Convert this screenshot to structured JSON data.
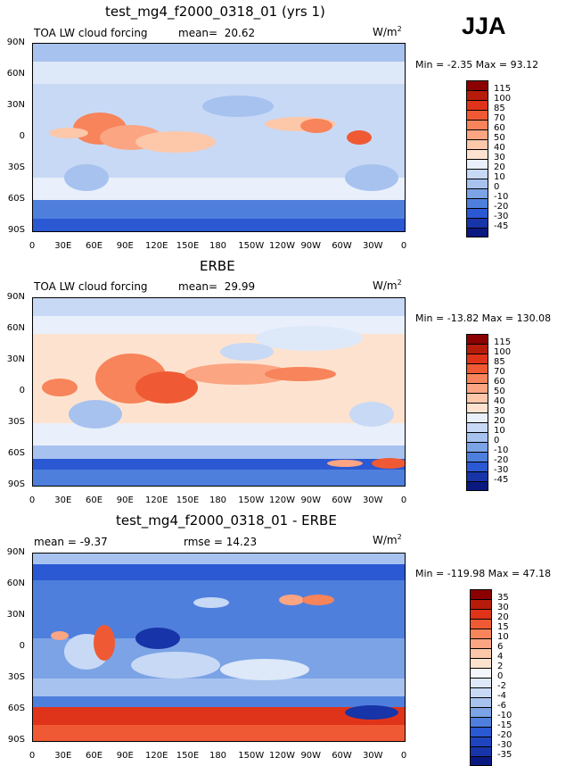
{
  "season": "JJA",
  "units_label": "W/m",
  "units_sup": "2",
  "lon_ticks": [
    "0",
    "30E",
    "60E",
    "90E",
    "120E",
    "150E",
    "180",
    "150W",
    "120W",
    "90W",
    "60W",
    "30W",
    "0"
  ],
  "lat_ticks": [
    "90N",
    "60N",
    "30N",
    "0",
    "30S",
    "60S",
    "90S"
  ],
  "panels": [
    {
      "title": "test_mg4_f2000_0318_01 (yrs 1)",
      "left_label": "TOA LW cloud forcing",
      "mean_label": "mean=",
      "mean_value": "20.62",
      "minmax": "Min =  -2.35 Max =  93.12",
      "colorbar_labels": [
        "115",
        "100",
        "85",
        "70",
        "60",
        "50",
        "40",
        "30",
        "20",
        "10",
        "0",
        "-10",
        "-20",
        "-30",
        "-45"
      ],
      "colorbar_colors": [
        "#8b0000",
        "#b71c0a",
        "#e0341a",
        "#ef5a34",
        "#f7845a",
        "#fba583",
        "#fdc7aa",
        "#fde3cf",
        "#e9f0fb",
        "#c8d9f5",
        "#a7c2ef",
        "#7ba3e6",
        "#4f7fdd",
        "#2b59d3",
        "#1734a8",
        "#0a1980"
      ]
    },
    {
      "title": "ERBE",
      "left_label": "TOA LW cloud forcing",
      "mean_label": "mean=",
      "mean_value": "29.99",
      "minmax": "Min = -13.82 Max = 130.08",
      "colorbar_labels": [
        "115",
        "100",
        "85",
        "70",
        "60",
        "50",
        "40",
        "30",
        "20",
        "10",
        "0",
        "-10",
        "-20",
        "-30",
        "-45"
      ],
      "colorbar_colors": [
        "#8b0000",
        "#b71c0a",
        "#e0341a",
        "#ef5a34",
        "#f7845a",
        "#fba583",
        "#fdc7aa",
        "#fde3cf",
        "#e9f0fb",
        "#c8d9f5",
        "#a7c2ef",
        "#7ba3e6",
        "#4f7fdd",
        "#2b59d3",
        "#1734a8",
        "#0a1980"
      ]
    },
    {
      "title": "test_mg4_f2000_0318_01 - ERBE",
      "left_label": "mean =   -9.37",
      "rmse_label": "rmse =   14.23",
      "minmax": "Min = -119.98 Max =  47.18",
      "colorbar_labels": [
        "35",
        "30",
        "20",
        "15",
        "10",
        "6",
        "4",
        "2",
        "0",
        "-2",
        "-4",
        "-6",
        "-10",
        "-15",
        "-20",
        "-30",
        "-35"
      ],
      "colorbar_colors": [
        "#8b0000",
        "#b71c0a",
        "#e0341a",
        "#ef5a34",
        "#f7845a",
        "#fba583",
        "#fdc7aa",
        "#fde3cf",
        "#f5f7fc",
        "#dde8f8",
        "#c8d9f5",
        "#a7c2ef",
        "#7ba3e6",
        "#4f7fdd",
        "#2b59d3",
        "#1e44bf",
        "#1734a8",
        "#0a1980"
      ]
    }
  ]
}
